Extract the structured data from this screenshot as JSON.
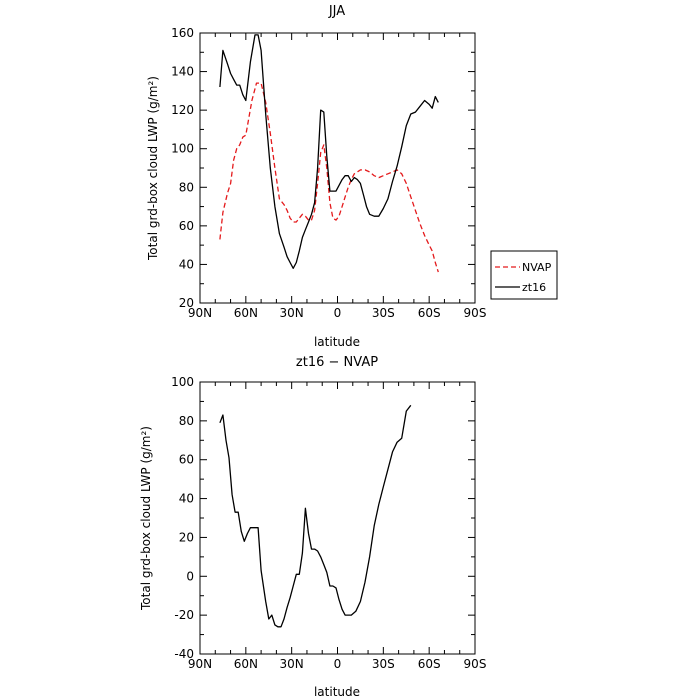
{
  "chart_data": [
    {
      "type": "line",
      "title": "JJA",
      "xlabel": "latitude",
      "ylabel": "Total grd-box cloud LWP (g/m²)",
      "xlim": [
        90,
        -90
      ],
      "ylim": [
        20,
        160
      ],
      "x_ticks": [
        {
          "value": 90,
          "label": "90N"
        },
        {
          "value": 60,
          "label": "60N"
        },
        {
          "value": 30,
          "label": "30N"
        },
        {
          "value": 0,
          "label": "0"
        },
        {
          "value": -30,
          "label": "30S"
        },
        {
          "value": -60,
          "label": "60S"
        },
        {
          "value": -90,
          "label": "90S"
        }
      ],
      "y_ticks": [
        20,
        40,
        60,
        80,
        100,
        120,
        140,
        160
      ],
      "legend": {
        "position": "right"
      },
      "series": [
        {
          "name": "NVAP",
          "color": "#e41a1c",
          "dash": "dashed",
          "points": [
            [
              77,
              53
            ],
            [
              75,
              67
            ],
            [
              72,
              77
            ],
            [
              70,
              82
            ],
            [
              68,
              94
            ],
            [
              66,
              100
            ],
            [
              64,
              102
            ],
            [
              62,
              106
            ],
            [
              60,
              107
            ],
            [
              56,
              125
            ],
            [
              53,
              134
            ],
            [
              50,
              134
            ],
            [
              47,
              124
            ],
            [
              44,
              108
            ],
            [
              41,
              90
            ],
            [
              38,
              74
            ],
            [
              35,
              71
            ],
            [
              33,
              68
            ],
            [
              31,
              64
            ],
            [
              29,
              62
            ],
            [
              27,
              62
            ],
            [
              25,
              64
            ],
            [
              23,
              66
            ],
            [
              21,
              65
            ],
            [
              19,
              63
            ],
            [
              17,
              63
            ],
            [
              15,
              68
            ],
            [
              13,
              82
            ],
            [
              11,
              98
            ],
            [
              9,
              102
            ],
            [
              7,
              90
            ],
            [
              5,
              72
            ],
            [
              3,
              64
            ],
            [
              1,
              63
            ],
            [
              -1,
              65
            ],
            [
              -3,
              70
            ],
            [
              -5,
              75
            ],
            [
              -7,
              80
            ],
            [
              -9,
              84
            ],
            [
              -11,
              87
            ],
            [
              -13,
              88
            ],
            [
              -15,
              89
            ],
            [
              -18,
              89
            ],
            [
              -21,
              88
            ],
            [
              -24,
              86
            ],
            [
              -27,
              85
            ],
            [
              -30,
              86
            ],
            [
              -33,
              87
            ],
            [
              -36,
              88
            ],
            [
              -39,
              89
            ],
            [
              -42,
              87
            ],
            [
              -45,
              82
            ],
            [
              -48,
              75
            ],
            [
              -51,
              68
            ],
            [
              -54,
              61
            ],
            [
              -57,
              55
            ],
            [
              -60,
              50
            ],
            [
              -62,
              47
            ],
            [
              -64,
              41
            ],
            [
              -66,
              36
            ]
          ]
        },
        {
          "name": "zt16",
          "color": "#000000",
          "dash": "solid",
          "points": [
            [
              77,
              132
            ],
            [
              75,
              151
            ],
            [
              72,
              144
            ],
            [
              70,
              139
            ],
            [
              68,
              136
            ],
            [
              66,
              133
            ],
            [
              64,
              133
            ],
            [
              62,
              128
            ],
            [
              60,
              125
            ],
            [
              57,
              145
            ],
            [
              54,
              159
            ],
            [
              52,
              159
            ],
            [
              50,
              151
            ],
            [
              47,
              118
            ],
            [
              44,
              90
            ],
            [
              41,
              70
            ],
            [
              38,
              56
            ],
            [
              35,
              49
            ],
            [
              33,
              44
            ],
            [
              31,
              41
            ],
            [
              29,
              38
            ],
            [
              27,
              41
            ],
            [
              25,
              47
            ],
            [
              23,
              54
            ],
            [
              21,
              58
            ],
            [
              19,
              62
            ],
            [
              17,
              66
            ],
            [
              15,
              72
            ],
            [
              13,
              90
            ],
            [
              11,
              120
            ],
            [
              9,
              119
            ],
            [
              7,
              96
            ],
            [
              5,
              78
            ],
            [
              3,
              78
            ],
            [
              1,
              78
            ],
            [
              -1,
              81
            ],
            [
              -3,
              84
            ],
            [
              -5,
              86
            ],
            [
              -7,
              86
            ],
            [
              -9,
              83
            ],
            [
              -11,
              85
            ],
            [
              -13,
              84
            ],
            [
              -15,
              82
            ],
            [
              -17,
              76
            ],
            [
              -19,
              70
            ],
            [
              -21,
              66
            ],
            [
              -24,
              65
            ],
            [
              -27,
              65
            ],
            [
              -30,
              69
            ],
            [
              -33,
              74
            ],
            [
              -36,
              83
            ],
            [
              -39,
              91
            ],
            [
              -42,
              101
            ],
            [
              -45,
              112
            ],
            [
              -48,
              118
            ],
            [
              -51,
              119
            ],
            [
              -54,
              122
            ],
            [
              -57,
              125
            ],
            [
              -60,
              123
            ],
            [
              -62,
              121
            ],
            [
              -64,
              127
            ],
            [
              -66,
              124
            ]
          ]
        }
      ]
    },
    {
      "type": "line",
      "title": "zt16 − NVAP",
      "xlabel": "latitude",
      "ylabel": "Total grd-box cloud LWP (g/m²)",
      "xlim": [
        90,
        -90
      ],
      "ylim": [
        -40,
        100
      ],
      "x_ticks": [
        {
          "value": 90,
          "label": "90N"
        },
        {
          "value": 60,
          "label": "60N"
        },
        {
          "value": 30,
          "label": "30N"
        },
        {
          "value": 0,
          "label": "0"
        },
        {
          "value": -30,
          "label": "30S"
        },
        {
          "value": -60,
          "label": "60S"
        },
        {
          "value": -90,
          "label": "90S"
        }
      ],
      "y_ticks": [
        -40,
        -20,
        0,
        20,
        40,
        60,
        80,
        100
      ],
      "series": [
        {
          "color": "#000000",
          "dash": "solid",
          "points": [
            [
              77,
              79
            ],
            [
              75,
              83
            ],
            [
              73,
              70
            ],
            [
              71,
              61
            ],
            [
              69,
              42
            ],
            [
              67,
              33
            ],
            [
              65,
              33
            ],
            [
              63,
              23
            ],
            [
              61,
              18
            ],
            [
              59,
              22
            ],
            [
              57,
              25
            ],
            [
              54,
              25
            ],
            [
              52,
              25
            ],
            [
              50,
              3
            ],
            [
              47,
              -13
            ],
            [
              45,
              -22
            ],
            [
              43,
              -20
            ],
            [
              41,
              -25
            ],
            [
              39,
              -26
            ],
            [
              37,
              -26
            ],
            [
              35,
              -22
            ],
            [
              33,
              -16
            ],
            [
              31,
              -11
            ],
            [
              29,
              -5
            ],
            [
              27,
              1
            ],
            [
              25,
              1
            ],
            [
              23,
              12
            ],
            [
              21,
              35
            ],
            [
              19,
              22
            ],
            [
              17,
              14
            ],
            [
              15,
              14
            ],
            [
              13,
              13
            ],
            [
              11,
              10
            ],
            [
              9,
              6
            ],
            [
              7,
              2
            ],
            [
              5,
              -5
            ],
            [
              3,
              -5
            ],
            [
              1,
              -6
            ],
            [
              -1,
              -12
            ],
            [
              -3,
              -17
            ],
            [
              -5,
              -20
            ],
            [
              -7,
              -20
            ],
            [
              -9,
              -20
            ],
            [
              -12,
              -18
            ],
            [
              -15,
              -13
            ],
            [
              -18,
              -3
            ],
            [
              -21,
              10
            ],
            [
              -24,
              26
            ],
            [
              -27,
              37
            ],
            [
              -30,
              46
            ],
            [
              -33,
              55
            ],
            [
              -36,
              64
            ],
            [
              -39,
              69
            ],
            [
              -42,
              71
            ],
            [
              -45,
              85
            ],
            [
              -48,
              88
            ]
          ]
        }
      ]
    }
  ]
}
